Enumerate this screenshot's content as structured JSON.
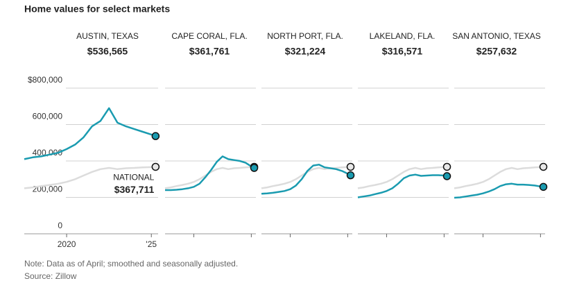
{
  "chart_data": {
    "type": "line",
    "title": "Home values for select markets",
    "note": "Note: Data as of April; smoothed and seasonally adjusted.",
    "source": "Source: Zillow",
    "x": [
      2017.5,
      2018,
      2018.5,
      2019,
      2019.5,
      2020,
      2020.5,
      2021,
      2021.5,
      2022,
      2022.5,
      2023,
      2023.5,
      2024,
      2024.5,
      2025,
      2025.25
    ],
    "xlim": [
      2017.5,
      2025.4
    ],
    "xticks": [
      2020,
      {
        "value": 2025,
        "label": "'25"
      }
    ],
    "ylim": [
      0,
      800000
    ],
    "yticks": [
      0,
      {
        "value": 200000,
        "label": "200,000"
      },
      {
        "value": 400000,
        "label": "400,000"
      },
      {
        "value": 600000,
        "label": "600,000"
      },
      {
        "value": 800000,
        "label": "$800,000"
      }
    ],
    "grid": true,
    "national": {
      "name": "NATIONAL",
      "color": "#dcdcdc",
      "values": [
        250000,
        255000,
        262000,
        268000,
        275000,
        285000,
        300000,
        320000,
        340000,
        355000,
        362000,
        355000,
        360000,
        362000,
        365000,
        366000,
        367711
      ],
      "value_labels": [
        null,
        null,
        null,
        null,
        null,
        null,
        null,
        null,
        null,
        null,
        null,
        null,
        null,
        null,
        null,
        null,
        "$367,711"
      ]
    },
    "panels": [
      {
        "title": "AUSTIN, TEXAS",
        "color": "#1a9bb0",
        "values": [
          410000,
          420000,
          425000,
          435000,
          445000,
          465000,
          490000,
          530000,
          590000,
          620000,
          690000,
          610000,
          590000,
          575000,
          560000,
          545000,
          536565
        ],
        "value_labels": [
          null,
          null,
          null,
          null,
          null,
          null,
          null,
          null,
          null,
          null,
          null,
          null,
          null,
          null,
          null,
          null,
          "$536,565"
        ]
      },
      {
        "title": "CAPE CORAL, FLA.",
        "color": "#1a9bb0",
        "values": [
          240000,
          240000,
          242000,
          245000,
          250000,
          258000,
          275000,
          310000,
          350000,
          395000,
          425000,
          410000,
          405000,
          400000,
          390000,
          370000,
          361761
        ],
        "value_labels": [
          null,
          null,
          null,
          null,
          null,
          null,
          null,
          null,
          null,
          null,
          null,
          null,
          null,
          null,
          null,
          null,
          "$361,761"
        ]
      },
      {
        "title": "NORTH PORT, FLA.",
        "color": "#1a9bb0",
        "values": [
          220000,
          222000,
          225000,
          230000,
          235000,
          245000,
          265000,
          300000,
          345000,
          375000,
          380000,
          365000,
          360000,
          355000,
          345000,
          330000,
          321224
        ],
        "value_labels": [
          null,
          null,
          null,
          null,
          null,
          null,
          null,
          null,
          null,
          null,
          null,
          null,
          null,
          null,
          null,
          null,
          "$321,224"
        ]
      },
      {
        "title": "LAKELAND, FLA.",
        "color": "#1a9bb0",
        "values": [
          200000,
          205000,
          210000,
          218000,
          225000,
          235000,
          250000,
          275000,
          305000,
          320000,
          325000,
          318000,
          320000,
          322000,
          322000,
          320000,
          316571
        ],
        "value_labels": [
          null,
          null,
          null,
          null,
          null,
          null,
          null,
          null,
          null,
          null,
          null,
          null,
          null,
          null,
          null,
          null,
          "$316,571"
        ]
      },
      {
        "title": "SAN ANTONIO, TEXAS",
        "color": "#1a9bb0",
        "values": [
          198000,
          200000,
          205000,
          210000,
          215000,
          222000,
          232000,
          245000,
          262000,
          272000,
          275000,
          270000,
          270000,
          268000,
          265000,
          260000,
          257632
        ],
        "value_labels": [
          null,
          null,
          null,
          null,
          null,
          null,
          null,
          null,
          null,
          null,
          null,
          null,
          null,
          null,
          null,
          null,
          "$257,632"
        ]
      }
    ]
  }
}
